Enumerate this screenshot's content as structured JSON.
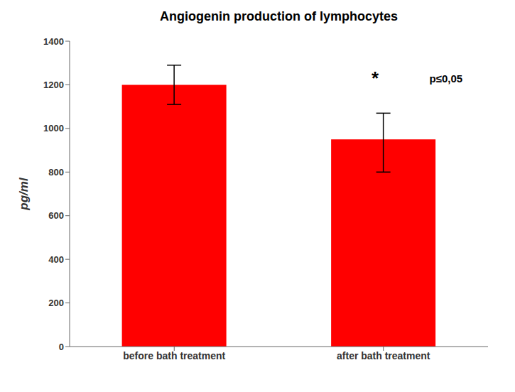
{
  "chart_data": {
    "type": "bar",
    "title": "Angiogenin production of lymphocytes",
    "categories": [
      "before bath treatment",
      "after bath treatment"
    ],
    "values": [
      1200,
      950
    ],
    "errors_up": [
      90,
      120
    ],
    "errors_down": [
      90,
      150
    ],
    "color": "#ff0000",
    "ylabel": "pg/ml",
    "ylim": [
      0,
      1400
    ],
    "yticks": [
      0,
      200,
      400,
      600,
      800,
      1000,
      1200,
      1400
    ],
    "grid": false,
    "annotations": [
      "*",
      "p≤0,05"
    ]
  }
}
